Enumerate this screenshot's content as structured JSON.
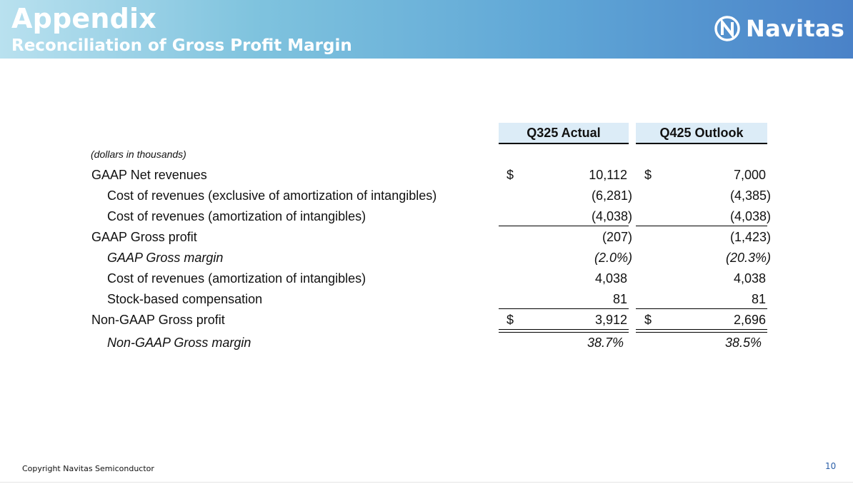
{
  "header": {
    "title": "Appendix",
    "subtitle": "Reconciliation of Gross Profit Margin",
    "logo_text": "Navitas"
  },
  "table": {
    "columns": [
      "Q325 Actual",
      "Q425 Outlook"
    ],
    "unit_note": "(dollars in thousands)",
    "rows": [
      {
        "label": "GAAP Net revenues",
        "cur1": "$",
        "v1": "10,112",
        "cur2": "$",
        "v2": "7,000"
      },
      {
        "label": "Cost of revenues (exclusive of amortization of intangibles)",
        "v1": "(6,281)",
        "v2": "(4,385)"
      },
      {
        "label": "Cost of revenues (amortization of intangibles)",
        "v1": "(4,038)",
        "v2": "(4,038)"
      },
      {
        "label": "GAAP Gross profit",
        "v1": "(207)",
        "v2": "(1,423)"
      },
      {
        "label": "GAAP Gross margin",
        "v1": "(2.0%)",
        "v2": "(20.3%)"
      },
      {
        "label": "Cost of revenues (amortization of intangibles)",
        "v1": "4,038",
        "v2": "4,038"
      },
      {
        "label": "Stock-based compensation",
        "v1": "81",
        "v2": "81"
      },
      {
        "label": "Non-GAAP Gross profit",
        "cur1": "$",
        "v1": "3,912",
        "cur2": "$",
        "v2": "2,696"
      },
      {
        "label": "Non-GAAP Gross margin",
        "v1": "38.7%",
        "v2": "38.5%"
      }
    ]
  },
  "footer": {
    "copyright": "Copyright Navitas Semiconductor",
    "page_number": "10"
  }
}
